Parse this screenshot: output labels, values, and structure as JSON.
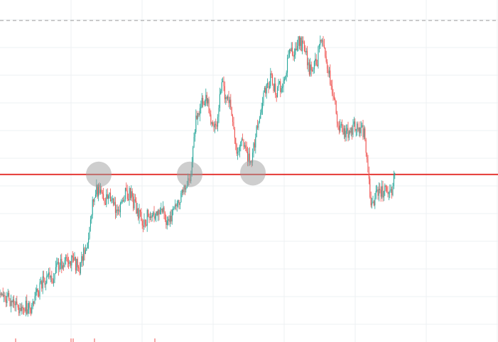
{
  "colors": {
    "background": "#ffffff",
    "grid": "#eef0f3",
    "up": "#26a69a",
    "down": "#ef5350",
    "support_line": "#e53935",
    "top_dashed_line": "#9e9e9e",
    "touch_marker": "#9e9e9e"
  },
  "chart_data": {
    "type": "candlestick",
    "title": "",
    "xlabel": "",
    "ylabel": "",
    "ylim": [
      0,
      100
    ],
    "grid": true,
    "reference_lines": [
      {
        "kind": "horizontal",
        "style": "solid",
        "y": 49.0
      },
      {
        "kind": "horizontal",
        "style": "dashed",
        "y": 94.0
      }
    ],
    "touch_markers": [
      {
        "x": 139,
        "y": 49.0
      },
      {
        "x": 267,
        "y": 49.0
      },
      {
        "x": 356,
        "y": 49.5
      }
    ],
    "path_anchors": [
      [
        0,
        13.8
      ],
      [
        10,
        13.0
      ],
      [
        25,
        9.7
      ],
      [
        45,
        10.4
      ],
      [
        58,
        17.0
      ],
      [
        75,
        19.5
      ],
      [
        85,
        22.8
      ],
      [
        100,
        23.8
      ],
      [
        112,
        21.8
      ],
      [
        122,
        28.5
      ],
      [
        131,
        41.2
      ],
      [
        136,
        44.5
      ],
      [
        142,
        43.2
      ],
      [
        150,
        42.2
      ],
      [
        158,
        41.0
      ],
      [
        166,
        38.5
      ],
      [
        172,
        41.6
      ],
      [
        180,
        44.1
      ],
      [
        188,
        40.6
      ],
      [
        196,
        37.2
      ],
      [
        203,
        34.1
      ],
      [
        210,
        38.2
      ],
      [
        218,
        36.2
      ],
      [
        226,
        39.2
      ],
      [
        234,
        35.9
      ],
      [
        240,
        35.0
      ],
      [
        248,
        41.0
      ],
      [
        258,
        43.8
      ],
      [
        266,
        46.2
      ],
      [
        270,
        52.1
      ],
      [
        275,
        63.7
      ],
      [
        282,
        69.4
      ],
      [
        290,
        71.2
      ],
      [
        296,
        66.0
      ],
      [
        305,
        63.9
      ],
      [
        312,
        75.2
      ],
      [
        320,
        70.9
      ],
      [
        326,
        67.4
      ],
      [
        334,
        56.0
      ],
      [
        340,
        57.8
      ],
      [
        348,
        54.1
      ],
      [
        354,
        51.5
      ],
      [
        360,
        61.3
      ],
      [
        366,
        65.1
      ],
      [
        372,
        72.8
      ],
      [
        380,
        77.2
      ],
      [
        388,
        73.1
      ],
      [
        395,
        74.4
      ],
      [
        402,
        78.9
      ],
      [
        408,
        86.2
      ],
      [
        414,
        83.5
      ],
      [
        420,
        87.9
      ],
      [
        428,
        85.3
      ],
      [
        436,
        79.1
      ],
      [
        445,
        81.0
      ],
      [
        452,
        89.8
      ],
      [
        458,
        82.6
      ],
      [
        464,
        77.8
      ],
      [
        470,
        72.2
      ],
      [
        476,
        63.0
      ],
      [
        484,
        62.0
      ],
      [
        492,
        61.3
      ],
      [
        500,
        63.4
      ],
      [
        508,
        62.5
      ],
      [
        514,
        60.6
      ],
      [
        518,
        48.6
      ],
      [
        522,
        41.0
      ],
      [
        528,
        42.2
      ],
      [
        535,
        43.0
      ],
      [
        542,
        44.5
      ],
      [
        550,
        43.8
      ],
      [
        556,
        48.4
      ]
    ]
  }
}
